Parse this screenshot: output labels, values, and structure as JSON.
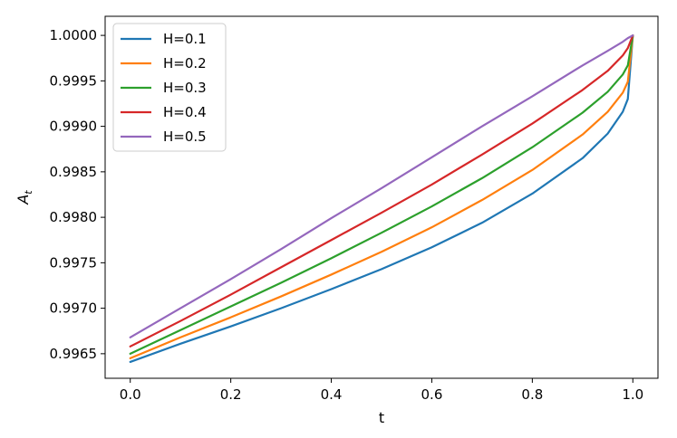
{
  "chart_data": {
    "type": "line",
    "title": "",
    "xlabel": "t",
    "ylabel_main": "A",
    "ylabel_sub": "t",
    "xlim": [
      -0.05,
      1.05
    ],
    "ylim": [
      0.99623,
      1.00021
    ],
    "xticks": [
      0.0,
      0.2,
      0.4,
      0.6,
      0.8,
      1.0
    ],
    "xtick_labels": [
      "0.0",
      "0.2",
      "0.4",
      "0.6",
      "0.8",
      "1.0"
    ],
    "yticks": [
      0.9965,
      0.997,
      0.9975,
      0.998,
      0.9985,
      0.999,
      0.9995,
      1.0
    ],
    "ytick_labels": [
      "0.9965",
      "0.9970",
      "0.9975",
      "0.9980",
      "0.9985",
      "0.9990",
      "0.9995",
      "1.0000"
    ],
    "grid": false,
    "legend_position": "top-left",
    "series": [
      {
        "name": "H=0.1",
        "color": "#1f77b4",
        "x": [
          0.0,
          0.1,
          0.2,
          0.3,
          0.4,
          0.5,
          0.6,
          0.7,
          0.8,
          0.9,
          0.95,
          0.98,
          0.99,
          1.0
        ],
        "y": [
          0.99641,
          0.99661,
          0.9968,
          0.997,
          0.99721,
          0.99743,
          0.99767,
          0.99794,
          0.99826,
          0.99865,
          0.99892,
          0.99916,
          0.9993,
          1.0
        ]
      },
      {
        "name": "H=0.2",
        "color": "#ff7f0e",
        "x": [
          0.0,
          0.1,
          0.2,
          0.3,
          0.4,
          0.5,
          0.6,
          0.7,
          0.8,
          0.9,
          0.95,
          0.98,
          0.99,
          1.0
        ],
        "y": [
          0.99645,
          0.99668,
          0.9969,
          0.99713,
          0.99737,
          0.99762,
          0.99789,
          0.99819,
          0.99852,
          0.99891,
          0.99916,
          0.99937,
          0.99949,
          1.0
        ]
      },
      {
        "name": "H=0.3",
        "color": "#2ca02c",
        "x": [
          0.0,
          0.1,
          0.2,
          0.3,
          0.4,
          0.5,
          0.6,
          0.7,
          0.8,
          0.9,
          0.95,
          0.98,
          0.99,
          1.0
        ],
        "y": [
          0.9965,
          0.99676,
          0.99702,
          0.99728,
          0.99755,
          0.99783,
          0.99812,
          0.99843,
          0.99877,
          0.99915,
          0.99938,
          0.99957,
          0.99967,
          1.0
        ]
      },
      {
        "name": "H=0.4",
        "color": "#d62728",
        "x": [
          0.0,
          0.1,
          0.2,
          0.3,
          0.4,
          0.5,
          0.6,
          0.7,
          0.8,
          0.9,
          0.95,
          0.98,
          0.99,
          1.0
        ],
        "y": [
          0.99658,
          0.99686,
          0.99715,
          0.99745,
          0.99775,
          0.99805,
          0.99836,
          0.99869,
          0.99903,
          0.9994,
          0.99961,
          0.99978,
          0.99986,
          1.0
        ]
      },
      {
        "name": "H=0.5",
        "color": "#9467bd",
        "x": [
          0.0,
          0.1,
          0.2,
          0.3,
          0.4,
          0.5,
          0.6,
          0.7,
          0.8,
          0.9,
          0.95,
          0.98,
          0.99,
          1.0
        ],
        "y": [
          0.99668,
          0.997,
          0.99732,
          0.99765,
          0.99799,
          0.99832,
          0.99866,
          0.999,
          0.99933,
          0.99967,
          0.99983,
          0.99993,
          0.99997,
          1.0
        ]
      }
    ]
  }
}
